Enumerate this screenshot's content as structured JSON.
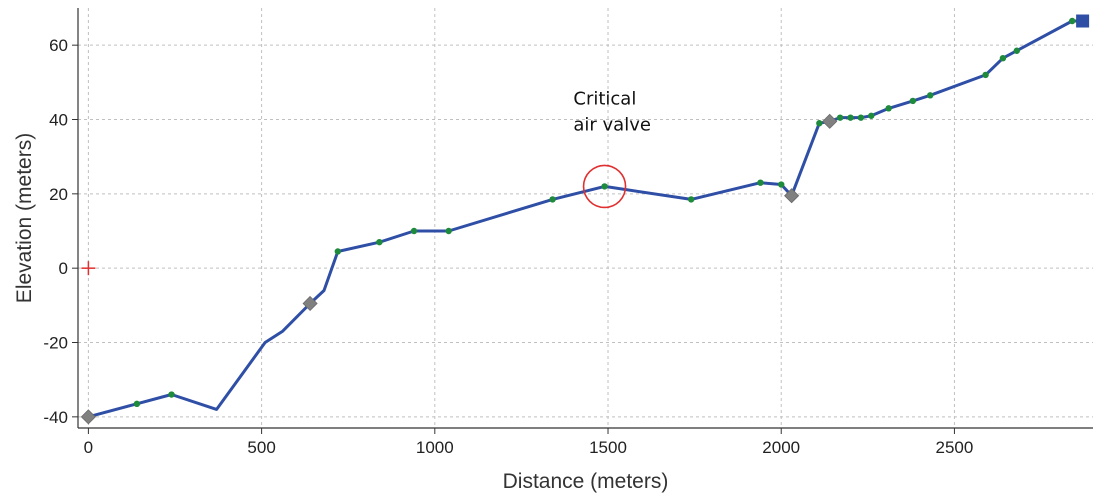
{
  "chart_data": {
    "type": "line",
    "title": "",
    "xlabel": "Distance (meters)",
    "ylabel": "Elevation (meters)",
    "xlim": [
      -30,
      2900
    ],
    "ylim": [
      -43,
      70
    ],
    "grid": true,
    "x_ticks": [
      0,
      500,
      1000,
      1500,
      2000,
      2500
    ],
    "y_ticks": [
      -40,
      -20,
      0,
      20,
      40,
      60
    ],
    "series": [
      {
        "name": "",
        "color": "#2f4fa6",
        "points": [
          {
            "x": 0,
            "y": -40
          },
          {
            "x": 140,
            "y": -36.5
          },
          {
            "x": 240,
            "y": -34
          },
          {
            "x": 370,
            "y": -38
          },
          {
            "x": 510,
            "y": -20
          },
          {
            "x": 560,
            "y": -17
          },
          {
            "x": 640,
            "y": -9.5
          },
          {
            "x": 680,
            "y": -6
          },
          {
            "x": 720,
            "y": 4.5
          },
          {
            "x": 840,
            "y": 7
          },
          {
            "x": 940,
            "y": 10
          },
          {
            "x": 1040,
            "y": 10
          },
          {
            "x": 1340,
            "y": 18.5
          },
          {
            "x": 1490,
            "y": 22
          },
          {
            "x": 1740,
            "y": 18.5
          },
          {
            "x": 1940,
            "y": 23
          },
          {
            "x": 2000,
            "y": 22.5
          },
          {
            "x": 2030,
            "y": 19.5
          },
          {
            "x": 2110,
            "y": 39
          },
          {
            "x": 2140,
            "y": 39.5
          },
          {
            "x": 2170,
            "y": 40.5
          },
          {
            "x": 2200,
            "y": 40.5
          },
          {
            "x": 2230,
            "y": 40.5
          },
          {
            "x": 2260,
            "y": 41
          },
          {
            "x": 2310,
            "y": 43
          },
          {
            "x": 2380,
            "y": 45
          },
          {
            "x": 2430,
            "y": 46.5
          },
          {
            "x": 2590,
            "y": 52
          },
          {
            "x": 2640,
            "y": 56.5
          },
          {
            "x": 2680,
            "y": 58.5
          },
          {
            "x": 2840,
            "y": 66.5
          },
          {
            "x": 2870,
            "y": 66.5
          }
        ],
        "node_markers": [
          {
            "x": 140,
            "y": -36.5
          },
          {
            "x": 240,
            "y": -34
          },
          {
            "x": 720,
            "y": 4.5
          },
          {
            "x": 840,
            "y": 7
          },
          {
            "x": 940,
            "y": 10
          },
          {
            "x": 1040,
            "y": 10
          },
          {
            "x": 1340,
            "y": 18.5
          },
          {
            "x": 1490,
            "y": 22
          },
          {
            "x": 1740,
            "y": 18.5
          },
          {
            "x": 1940,
            "y": 23
          },
          {
            "x": 2000,
            "y": 22.5
          },
          {
            "x": 2110,
            "y": 39
          },
          {
            "x": 2170,
            "y": 40.5
          },
          {
            "x": 2200,
            "y": 40.5
          },
          {
            "x": 2230,
            "y": 40.5
          },
          {
            "x": 2260,
            "y": 41
          },
          {
            "x": 2310,
            "y": 43
          },
          {
            "x": 2380,
            "y": 45
          },
          {
            "x": 2430,
            "y": 46.5
          },
          {
            "x": 2590,
            "y": 52
          },
          {
            "x": 2640,
            "y": 56.5
          },
          {
            "x": 2680,
            "y": 58.5
          },
          {
            "x": 2840,
            "y": 66.5
          }
        ],
        "diamond_markers": [
          {
            "x": 0,
            "y": -40
          },
          {
            "x": 640,
            "y": -9.5
          },
          {
            "x": 2030,
            "y": 19.5
          },
          {
            "x": 2140,
            "y": 39.5
          }
        ],
        "end_marker": {
          "x": 2870,
          "y": 66.5
        }
      }
    ],
    "origin_marker": {
      "x": 0,
      "y": 0
    },
    "annotations": [
      {
        "lines": [
          "Critical",
          "air valve"
        ],
        "x": 1490,
        "y": 22,
        "text_x": 1400,
        "text_y": 44
      }
    ],
    "colors": {
      "line": "#2f4fa6",
      "node": "#1e8a3c",
      "diamond": "#808080",
      "end_marker": "#2f4fa6",
      "highlight_circle": "#e03030",
      "origin_marker": "#e03030",
      "grid": "#c0c0c0"
    }
  }
}
